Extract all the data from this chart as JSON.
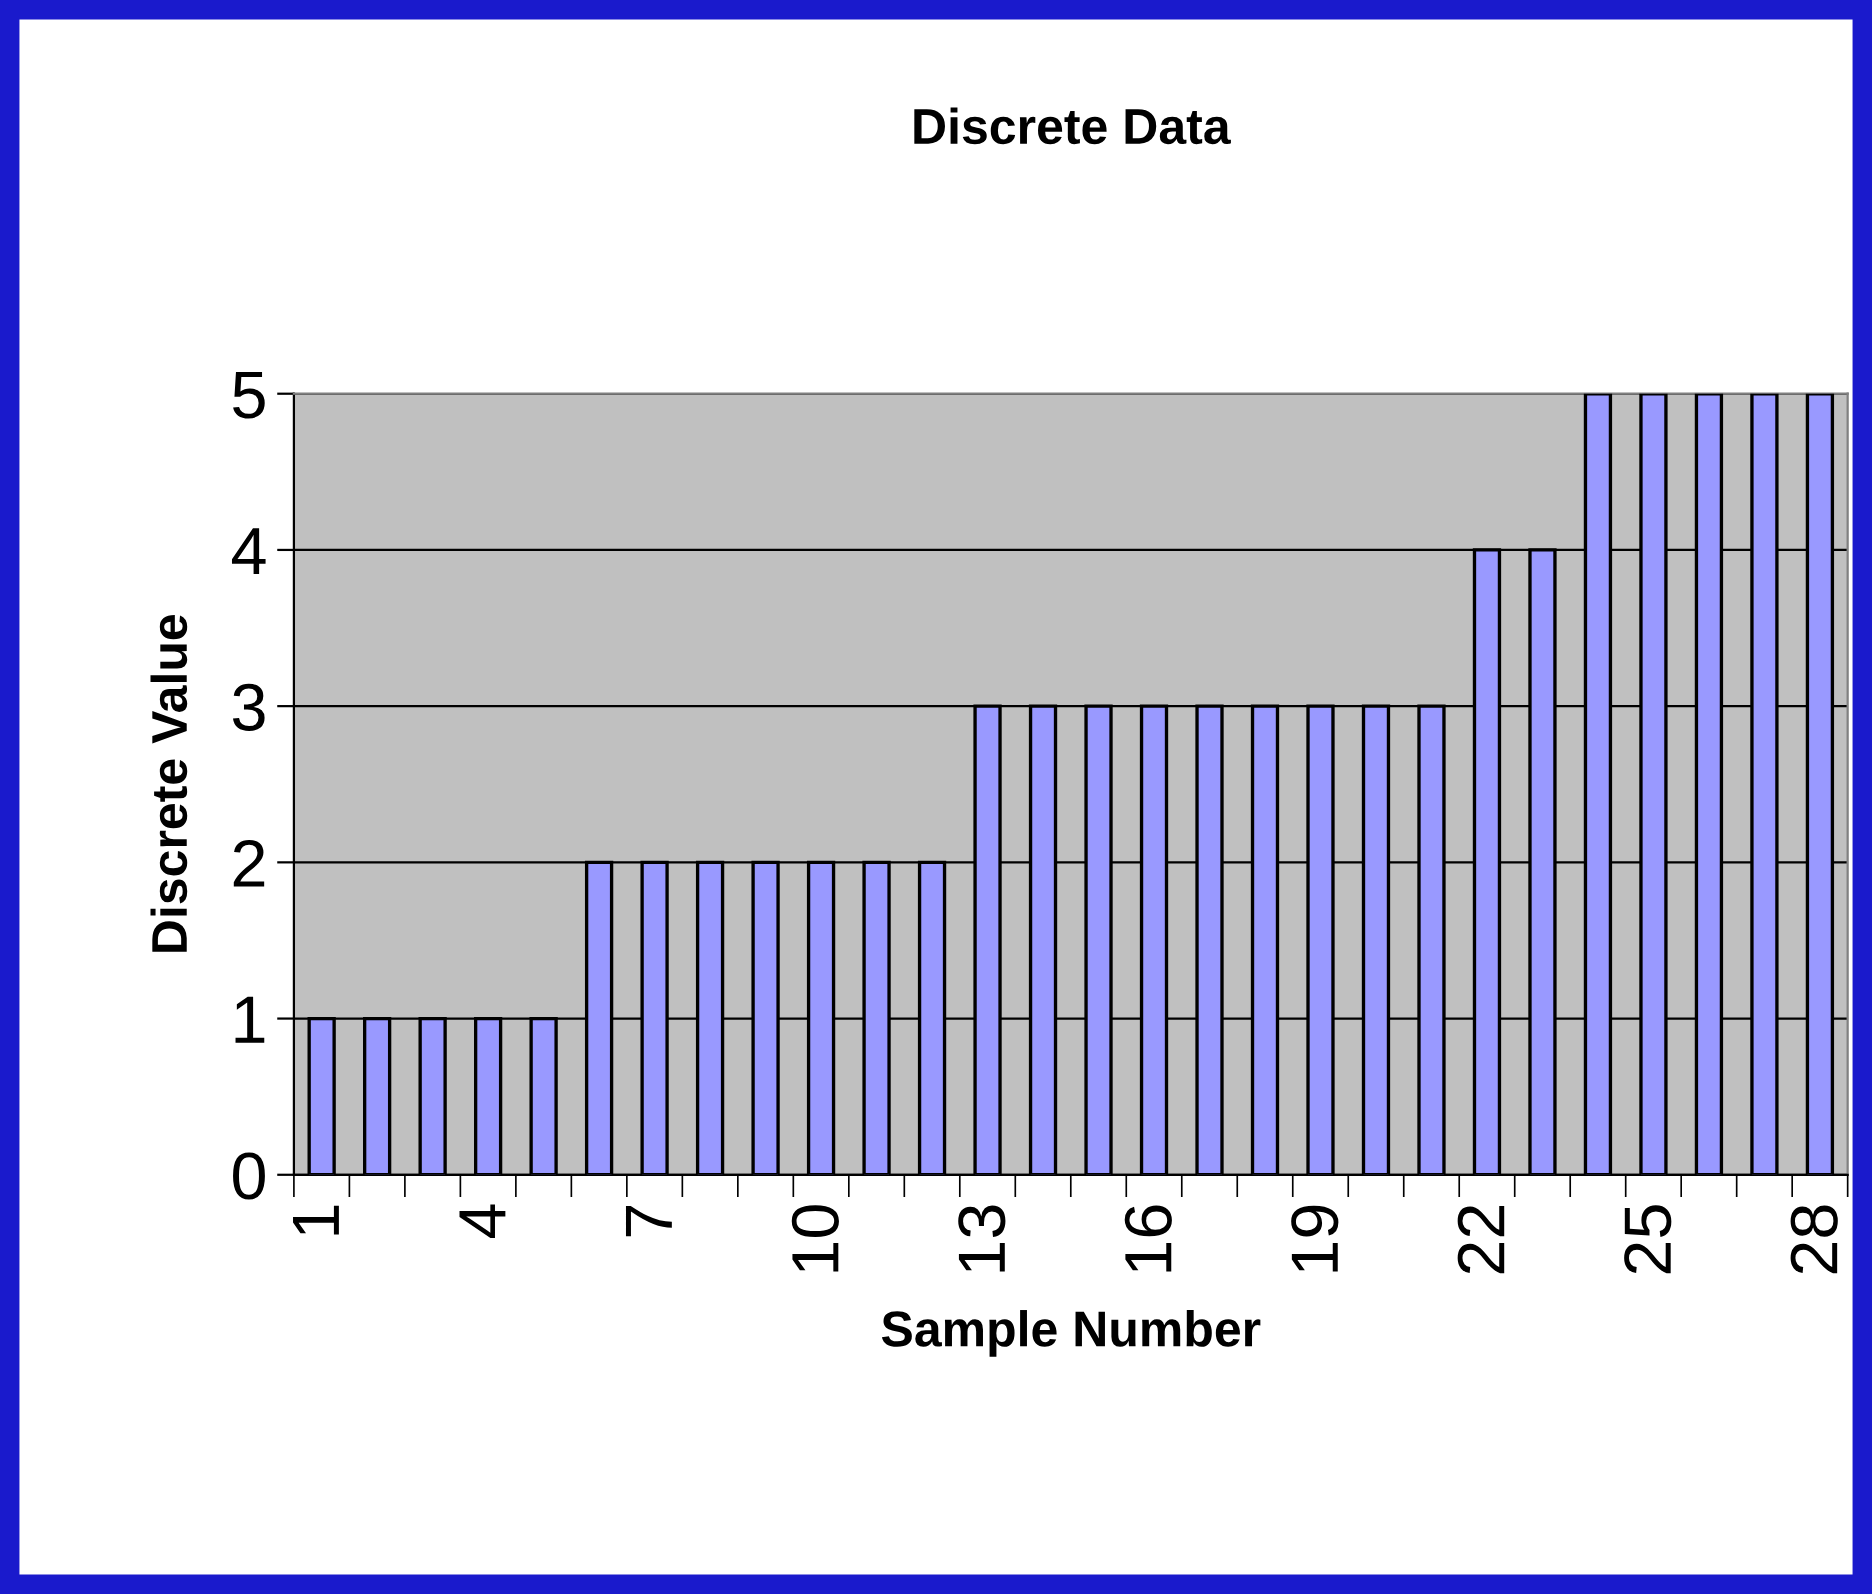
{
  "chart_data": {
    "type": "bar",
    "title": "Discrete Data",
    "xlabel": "Sample Number",
    "ylabel": "Discrete Value",
    "categories": [
      "1",
      null,
      null,
      "4",
      null,
      null,
      "7",
      null,
      null,
      "10",
      null,
      null,
      "13",
      null,
      null,
      "16",
      null,
      null,
      "19",
      null,
      null,
      "22",
      null,
      null,
      "25",
      null,
      null,
      "28"
    ],
    "values": [
      1,
      1,
      1,
      1,
      1,
      2,
      2,
      2,
      2,
      2,
      2,
      2,
      3,
      3,
      3,
      3,
      3,
      3,
      3,
      3,
      3,
      4,
      4,
      5,
      5,
      5,
      5,
      5
    ],
    "color": "#9999ff",
    "ylim": [
      0,
      5
    ],
    "yticks": [
      0,
      1,
      2,
      3,
      4,
      5
    ],
    "grid": "y",
    "legend": false
  }
}
